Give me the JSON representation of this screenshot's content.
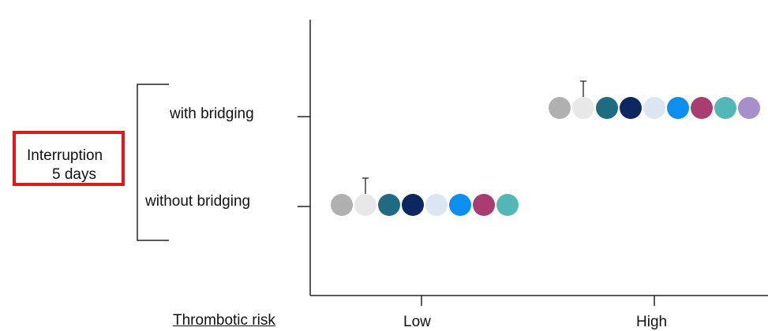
{
  "chart_data": {
    "type": "scatter",
    "title": "",
    "xlabel": "Thrombotic risk",
    "ylabel": "",
    "x_categories": [
      "Low",
      "High"
    ],
    "y_categories": [
      "without bridging",
      "with bridging"
    ],
    "group_label": [
      "Interruption",
      "5 days"
    ],
    "marker_colors": [
      "#b0b0b0",
      "#e8e8e8",
      "#1f6b82",
      "#0d2860",
      "#dce6f2",
      "#0c8fef",
      "#a93c70",
      "#55b6b8",
      "#a68fcb"
    ],
    "series": [
      {
        "x": "Low",
        "y": "without bridging",
        "markers": 8,
        "T_marker_index": 1
      },
      {
        "x": "High",
        "y": "with bridging",
        "markers": 9,
        "T_marker_index": 1
      }
    ]
  }
}
